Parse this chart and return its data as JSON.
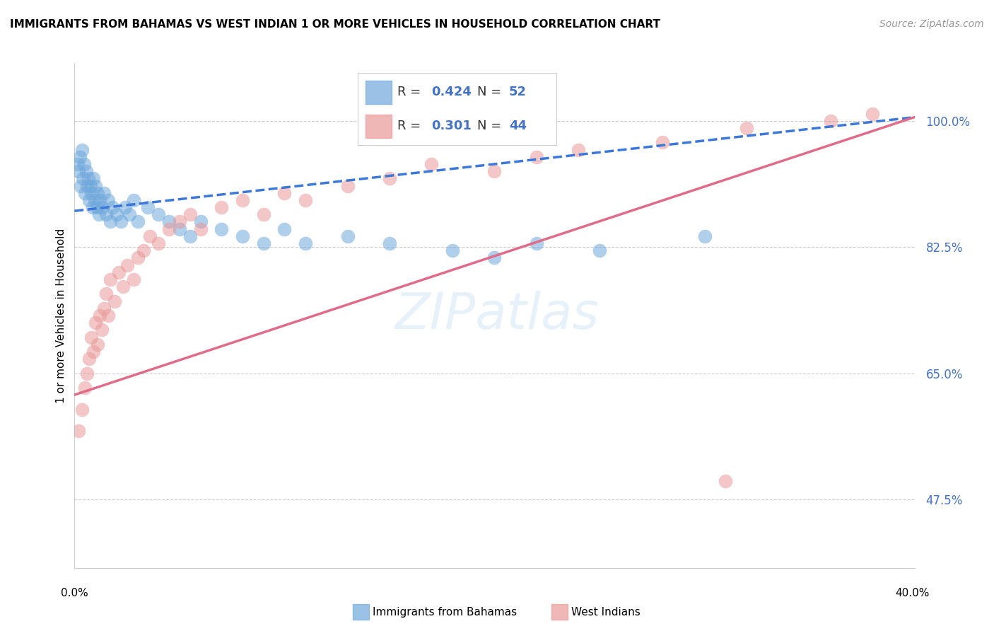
{
  "title": "IMMIGRANTS FROM BAHAMAS VS WEST INDIAN 1 OR MORE VEHICLES IN HOUSEHOLD CORRELATION CHART",
  "source": "Source: ZipAtlas.com",
  "ylabel": "1 or more Vehicles in Household",
  "xlim": [
    0.0,
    40.0
  ],
  "ylim": [
    38.0,
    108.0
  ],
  "yticks": [
    47.5,
    65.0,
    82.5,
    100.0
  ],
  "ytick_labels": [
    "47.5%",
    "65.0%",
    "82.5%",
    "100.0%"
  ],
  "blue_R": 0.424,
  "blue_N": 52,
  "pink_R": 0.301,
  "pink_N": 44,
  "blue_color": "#6fa8dc",
  "pink_color": "#ea9999",
  "blue_line_color": "#3c78d8",
  "pink_line_color": "#e06c8a",
  "blue_label": "Immigrants from Bahamas",
  "pink_label": "West Indians",
  "blue_x": [
    0.15,
    0.2,
    0.25,
    0.3,
    0.35,
    0.4,
    0.45,
    0.5,
    0.55,
    0.6,
    0.65,
    0.7,
    0.75,
    0.8,
    0.85,
    0.9,
    0.95,
    1.0,
    1.05,
    1.1,
    1.15,
    1.2,
    1.3,
    1.4,
    1.5,
    1.6,
    1.7,
    1.8,
    2.0,
    2.2,
    2.4,
    2.6,
    2.8,
    3.0,
    3.5,
    4.0,
    4.5,
    5.0,
    5.5,
    6.0,
    7.0,
    8.0,
    9.0,
    10.0,
    11.0,
    13.0,
    15.0,
    18.0,
    20.0,
    22.0,
    25.0,
    30.0
  ],
  "blue_y": [
    94,
    93,
    95,
    91,
    96,
    92,
    94,
    90,
    93,
    91,
    92,
    89,
    91,
    90,
    88,
    92,
    89,
    91,
    88,
    90,
    87,
    89,
    88,
    90,
    87,
    89,
    86,
    88,
    87,
    86,
    88,
    87,
    89,
    86,
    88,
    87,
    86,
    85,
    84,
    86,
    85,
    84,
    83,
    85,
    83,
    84,
    83,
    82,
    81,
    83,
    82,
    84
  ],
  "pink_x": [
    0.2,
    0.35,
    0.5,
    0.6,
    0.7,
    0.8,
    0.9,
    1.0,
    1.1,
    1.2,
    1.3,
    1.4,
    1.5,
    1.6,
    1.7,
    1.9,
    2.1,
    2.3,
    2.5,
    2.8,
    3.0,
    3.3,
    3.6,
    4.0,
    4.5,
    5.0,
    5.5,
    6.0,
    7.0,
    8.0,
    9.0,
    10.0,
    11.0,
    13.0,
    15.0,
    17.0,
    20.0,
    22.0,
    24.0,
    28.0,
    32.0,
    36.0,
    38.0,
    31.0
  ],
  "pink_y": [
    57,
    60,
    63,
    65,
    67,
    70,
    68,
    72,
    69,
    73,
    71,
    74,
    76,
    73,
    78,
    75,
    79,
    77,
    80,
    78,
    81,
    82,
    84,
    83,
    85,
    86,
    87,
    85,
    88,
    89,
    87,
    90,
    89,
    91,
    92,
    94,
    93,
    95,
    96,
    97,
    99,
    100,
    101,
    50
  ],
  "background_color": "#ffffff",
  "grid_color": "#cccccc"
}
